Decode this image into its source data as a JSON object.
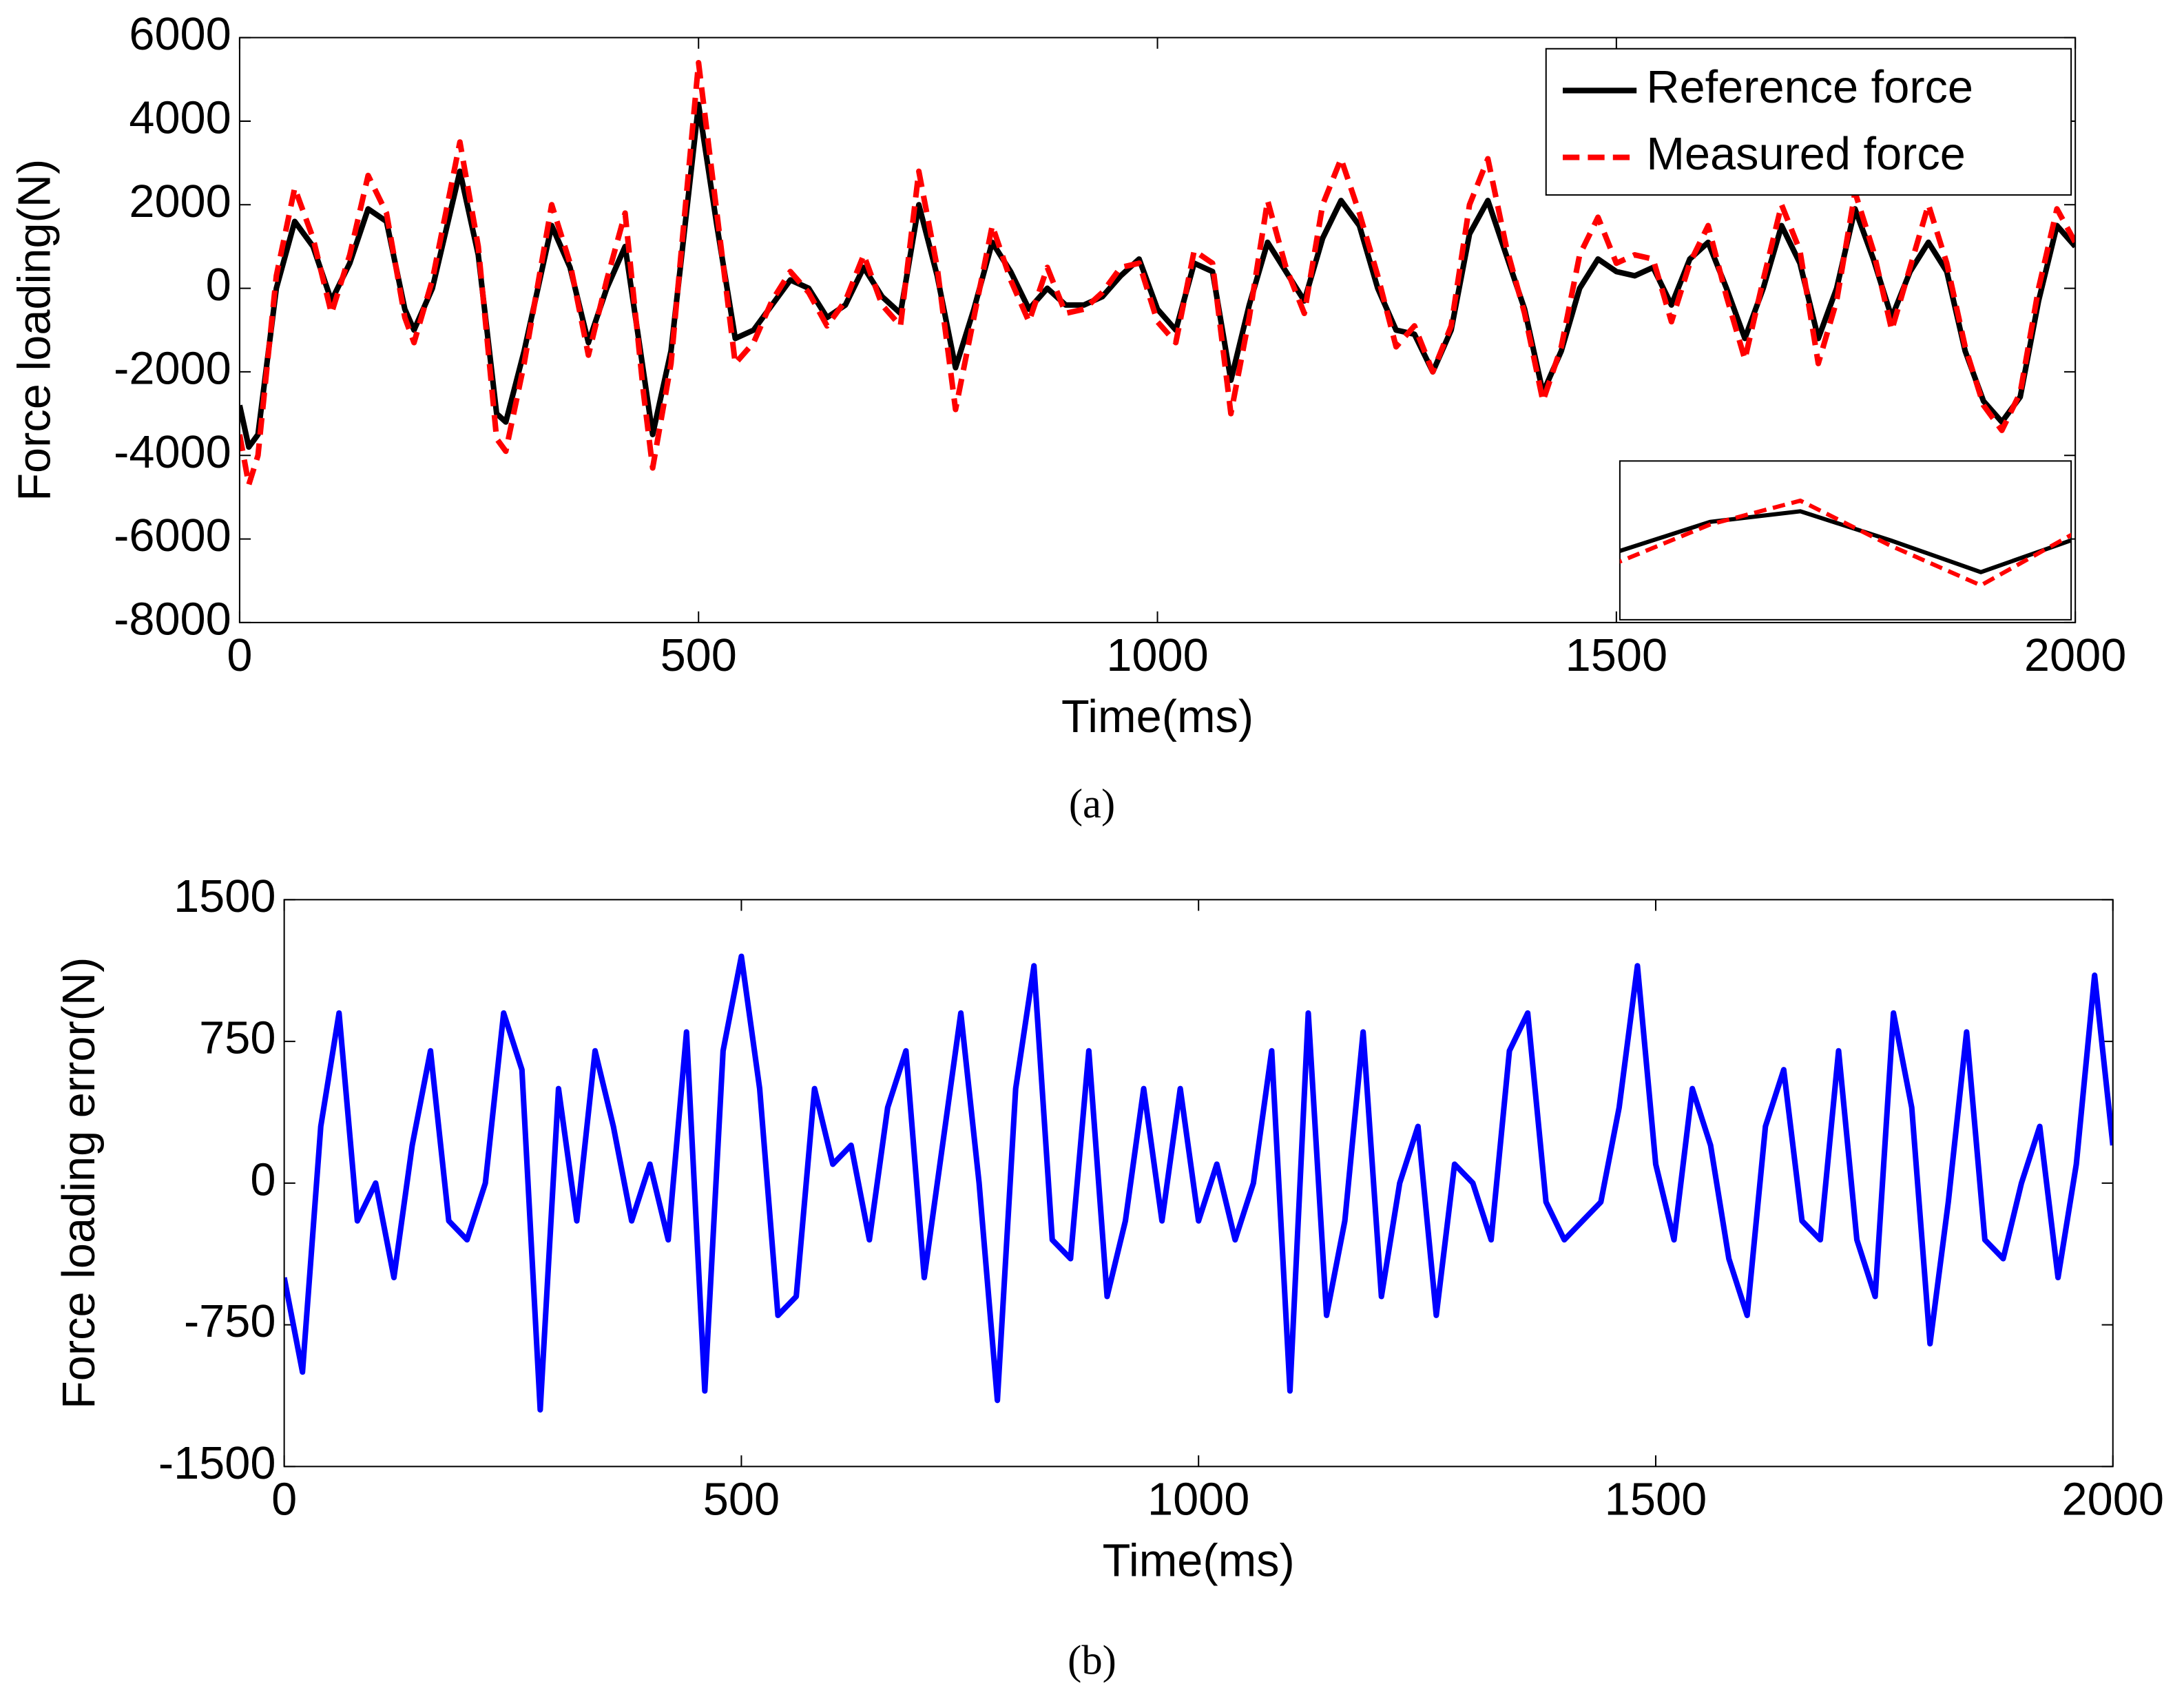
{
  "chart_data": [
    {
      "type": "line",
      "xlabel": "Time(ms)",
      "ylabel": "Force loading(N)",
      "caption": "(a)",
      "xlim": [
        0,
        2000
      ],
      "xticks": [
        0,
        500,
        1000,
        1500,
        2000
      ],
      "ylim": [
        -8000,
        6000
      ],
      "yticks": [
        -8000,
        -6000,
        -4000,
        -2000,
        0,
        2000,
        4000,
        6000
      ],
      "grid": false,
      "legend": "upper right",
      "x": [
        0,
        10,
        20,
        40,
        60,
        80,
        100,
        120,
        140,
        160,
        180,
        190,
        210,
        240,
        260,
        280,
        290,
        310,
        340,
        360,
        380,
        400,
        420,
        440,
        450,
        470,
        500,
        520,
        540,
        560,
        580,
        600,
        620,
        640,
        660,
        680,
        700,
        720,
        740,
        760,
        780,
        800,
        820,
        840,
        860,
        880,
        900,
        920,
        940,
        960,
        980,
        1000,
        1020,
        1040,
        1060,
        1080,
        1100,
        1120,
        1140,
        1160,
        1180,
        1200,
        1220,
        1240,
        1260,
        1280,
        1300,
        1320,
        1340,
        1360,
        1380,
        1400,
        1420,
        1440,
        1460,
        1480,
        1500,
        1520,
        1540,
        1560,
        1580,
        1600,
        1620,
        1640,
        1660,
        1680,
        1700,
        1720,
        1740,
        1760,
        1780,
        1800,
        1820,
        1840,
        1860,
        1880,
        1900,
        1920,
        1940,
        1960,
        1980,
        2000
      ],
      "series": [
        {
          "name": "Reference force",
          "color": "#000000",
          "dash": false,
          "values": [
            -2800,
            -3800,
            -3500,
            0,
            1600,
            1000,
            -300,
            600,
            1900,
            1600,
            -500,
            -1000,
            0,
            2800,
            800,
            -3000,
            -3200,
            -1500,
            1500,
            500,
            -1300,
            0,
            1000,
            -2000,
            -3500,
            -1500,
            4400,
            1500,
            -1200,
            -1000,
            -400,
            200,
            0,
            -700,
            -400,
            500,
            -200,
            -600,
            2000,
            300,
            -1900,
            -500,
            1100,
            400,
            -500,
            0,
            -400,
            -400,
            -200,
            300,
            700,
            -500,
            -1000,
            600,
            400,
            -2200,
            -400,
            1100,
            400,
            -300,
            1200,
            2100,
            1500,
            0,
            -1000,
            -1100,
            -2000,
            -1000,
            1300,
            2100,
            800,
            -500,
            -2500,
            -1500,
            0,
            700,
            400,
            300,
            500,
            -400,
            700,
            1100,
            0,
            -1200,
            0,
            1500,
            600,
            -1200,
            0,
            1900,
            700,
            -700,
            400,
            1100,
            400,
            -1500,
            -2700,
            -3200,
            -2600,
            -300,
            1500,
            1000
          ]
        },
        {
          "name": "Measured force",
          "color": "#ff0000",
          "dash": true,
          "values": [
            -3500,
            -4700,
            -4000,
            300,
            2400,
            1200,
            -600,
            800,
            2700,
            1800,
            -700,
            -1300,
            200,
            3500,
            1000,
            -3600,
            -3900,
            -1800,
            2000,
            600,
            -1600,
            200,
            1800,
            -2500,
            -4300,
            -1800,
            5400,
            1800,
            -1800,
            -1300,
            -300,
            400,
            -100,
            -900,
            -300,
            800,
            -400,
            -900,
            2800,
            500,
            -2900,
            -700,
            1500,
            200,
            -800,
            500,
            -600,
            -500,
            -100,
            500,
            600,
            -800,
            -1300,
            900,
            600,
            -3000,
            -700,
            2100,
            500,
            -600,
            2000,
            3100,
            1800,
            300,
            -1400,
            -900,
            -2000,
            -900,
            2000,
            3100,
            1000,
            -600,
            -2700,
            -1400,
            800,
            1700,
            600,
            800,
            700,
            -800,
            600,
            1500,
            -200,
            -1700,
            200,
            2000,
            900,
            -1800,
            -300,
            2300,
            900,
            -1000,
            500,
            2000,
            600,
            -1400,
            -2800,
            -3400,
            -2500,
            0,
            1900,
            1100
          ]
        }
      ],
      "inset": {
        "xlim": [
          1560,
          1660
        ],
        "ylim": [
          -3000,
          3000
        ]
      }
    },
    {
      "type": "line",
      "xlabel": "Time(ms)",
      "ylabel": "Force loading error(N)",
      "caption": "(b)",
      "xlim": [
        0,
        2000
      ],
      "xticks": [
        0,
        500,
        1000,
        1500,
        2000
      ],
      "ylim": [
        -1500,
        1500
      ],
      "yticks": [
        -1500,
        -750,
        0,
        750,
        1500
      ],
      "grid": false,
      "x": [
        0,
        20,
        40,
        60,
        80,
        100,
        120,
        140,
        160,
        180,
        200,
        220,
        240,
        260,
        280,
        300,
        320,
        340,
        360,
        380,
        400,
        420,
        440,
        460,
        480,
        500,
        520,
        540,
        560,
        580,
        600,
        620,
        640,
        660,
        680,
        700,
        720,
        740,
        760,
        780,
        800,
        820,
        840,
        860,
        880,
        900,
        920,
        940,
        960,
        980,
        1000,
        1020,
        1040,
        1060,
        1080,
        1100,
        1120,
        1140,
        1160,
        1180,
        1200,
        1220,
        1240,
        1260,
        1280,
        1300,
        1320,
        1340,
        1360,
        1380,
        1400,
        1420,
        1440,
        1460,
        1480,
        1500,
        1520,
        1540,
        1560,
        1580,
        1600,
        1620,
        1640,
        1660,
        1680,
        1700,
        1720,
        1740,
        1760,
        1780,
        1800,
        1820,
        1840,
        1860,
        1880,
        1900,
        1920,
        1940,
        1960,
        1980,
        2000
      ],
      "series": [
        {
          "color": "#0000ff",
          "dash": false,
          "values": [
            -500,
            -1000,
            300,
            900,
            -200,
            0,
            -500,
            200,
            700,
            -200,
            -300,
            0,
            900,
            600,
            -1200,
            500,
            -200,
            700,
            300,
            -200,
            100,
            -300,
            800,
            -1100,
            700,
            1200,
            500,
            -700,
            -600,
            500,
            100,
            200,
            -300,
            400,
            700,
            -500,
            200,
            900,
            0,
            -1150,
            500,
            1150,
            -300,
            -400,
            700,
            -600,
            -200,
            500,
            -200,
            500,
            -200,
            100,
            -300,
            0,
            700,
            -1100,
            900,
            -700,
            -200,
            800,
            -600,
            0,
            300,
            -700,
            100,
            0,
            -300,
            700,
            900,
            -100,
            -300,
            -200,
            -100,
            400,
            1150,
            100,
            -300,
            500,
            200,
            -400,
            -700,
            300,
            600,
            -200,
            -300,
            700,
            -300,
            -600,
            900,
            400,
            -850,
            -100,
            800,
            -300,
            -400,
            0,
            300,
            -500,
            100,
            1100,
            200
          ]
        }
      ]
    }
  ]
}
